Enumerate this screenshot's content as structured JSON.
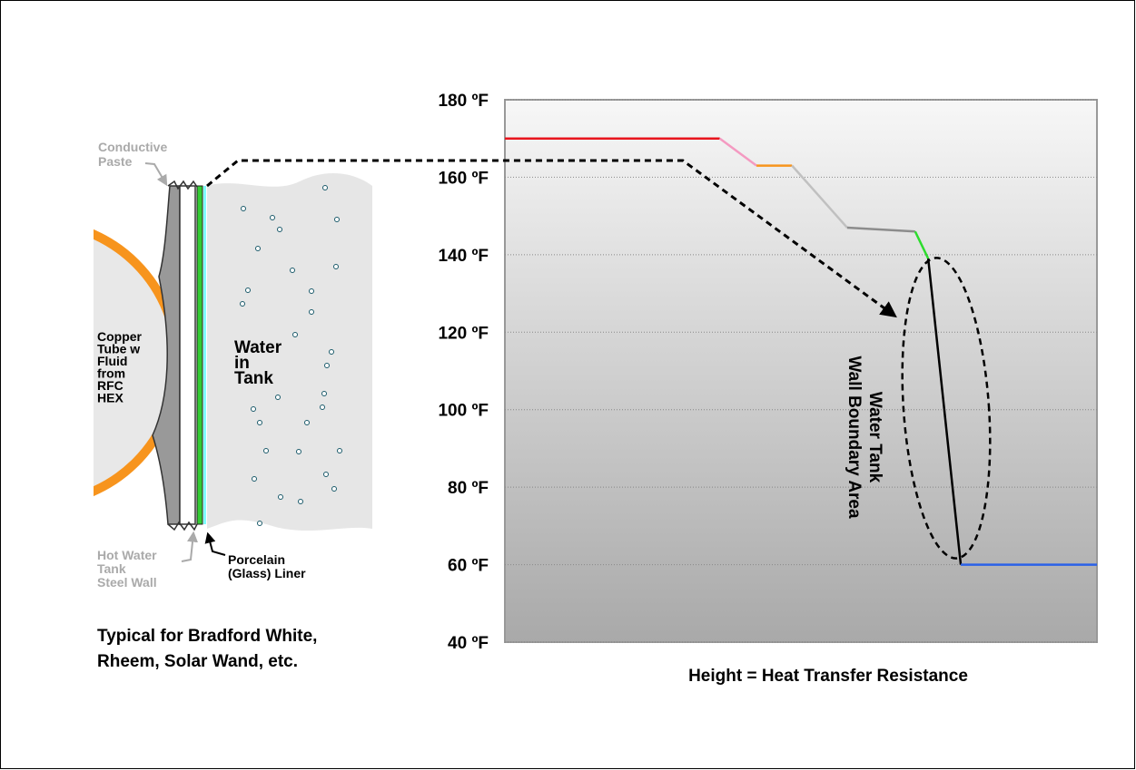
{
  "diagram": {
    "paste_label": [
      "Conductive",
      "Paste"
    ],
    "tube_label": [
      "Copper",
      "Tube w",
      "Fluid",
      "from",
      "RFC",
      "HEX"
    ],
    "water_label": [
      "Water",
      "in",
      "Tank"
    ],
    "wall_label": [
      "Hot Water",
      "Tank",
      "Steel Wall"
    ],
    "liner_label": [
      "Porcelain",
      "(Glass) Liner"
    ],
    "caption": [
      "Typical for Bradford White,",
      "Rheem, Solar Wand, etc."
    ]
  },
  "chart_data": {
    "type": "line",
    "xlabel": "Height = Heat Transfer Resistance",
    "annotation": [
      "Water Tank",
      "Wall Boundary Area"
    ],
    "background": [
      "#f7f7f7",
      "#a9a9a9"
    ],
    "grid": true,
    "xlim": [
      0,
      100
    ],
    "ylim": [
      40,
      180
    ],
    "yticks": [
      {
        "value": 40,
        "label": "40 ºF"
      },
      {
        "value": 60,
        "label": "60 ºF"
      },
      {
        "value": 80,
        "label": "80 ºF"
      },
      {
        "value": 100,
        "label": "100 ºF"
      },
      {
        "value": 120,
        "label": "120 ºF"
      },
      {
        "value": 140,
        "label": "140 ºF"
      },
      {
        "value": 160,
        "label": "160 ºF"
      },
      {
        "value": 180,
        "label": "180 ºF"
      }
    ],
    "series": [
      {
        "color": "#e8141c",
        "x": [
          0,
          36.3
        ],
        "values": [
          170,
          170
        ]
      },
      {
        "color": "#f49ac1",
        "x": [
          36.3,
          42.5
        ],
        "values": [
          170,
          163
        ]
      },
      {
        "color": "#f7941d",
        "x": [
          42.5,
          48.5
        ],
        "values": [
          163,
          163
        ]
      },
      {
        "color": "#c0c0c0",
        "x": [
          48.5,
          57.8
        ],
        "values": [
          163,
          147
        ]
      },
      {
        "color": "#8c8c8c",
        "x": [
          57.8,
          69.3
        ],
        "values": [
          147,
          146
        ]
      },
      {
        "color": "#2ddc2d",
        "x": [
          69.3,
          71.5
        ],
        "values": [
          146,
          139
        ]
      },
      {
        "color": "#000000",
        "x": [
          71.5,
          77
        ],
        "values": [
          139,
          60
        ]
      },
      {
        "color": "#2a62e8",
        "x": [
          77,
          100
        ],
        "values": [
          60,
          60
        ]
      }
    ]
  }
}
